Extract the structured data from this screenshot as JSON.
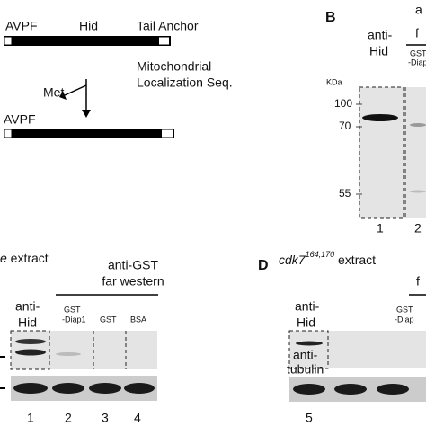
{
  "panel_a": {
    "top_construct": {
      "n_term": "AVPF",
      "name": "Hid",
      "c_term": "Tail Anchor"
    },
    "cleavage": "Met",
    "mls": [
      "Mitochondrial",
      "Localization Seq."
    ],
    "bottom_construct": {
      "n_term": "AVPF"
    }
  },
  "panel_b": {
    "letter": "B",
    "header_cut": [
      "a",
      "f"
    ],
    "lane_labels": {
      "anti_hid": [
        "anti-",
        "Hid"
      ],
      "gst_diap": [
        "GST",
        "-Diap"
      ]
    },
    "kda": "KDa",
    "markers": [
      "100",
      "70",
      "55"
    ],
    "lane_numbers": [
      "1",
      "2"
    ]
  },
  "panel_c": {
    "title_italic": "e",
    "title_rest": " extract",
    "group": [
      "anti-GST",
      "far western"
    ],
    "lane_labels": {
      "anti_hid": [
        "anti-",
        "Hid"
      ],
      "gst_diap": [
        "GST",
        "-Diap1"
      ],
      "gst": "GST",
      "bsa": "BSA"
    },
    "lane_numbers": [
      "1",
      "2",
      "3",
      "4"
    ]
  },
  "panel_d": {
    "letter": "D",
    "title_gene": "cdk7",
    "title_sup": "164,170",
    "title_rest": " extract",
    "group_cut": "f",
    "lane_labels": {
      "anti_hid": [
        "anti-",
        "Hid"
      ],
      "gst_diap": [
        "GST",
        "-Diap"
      ]
    },
    "loading": [
      "anti-",
      "tubulin"
    ],
    "lane_numbers": [
      "5"
    ]
  }
}
